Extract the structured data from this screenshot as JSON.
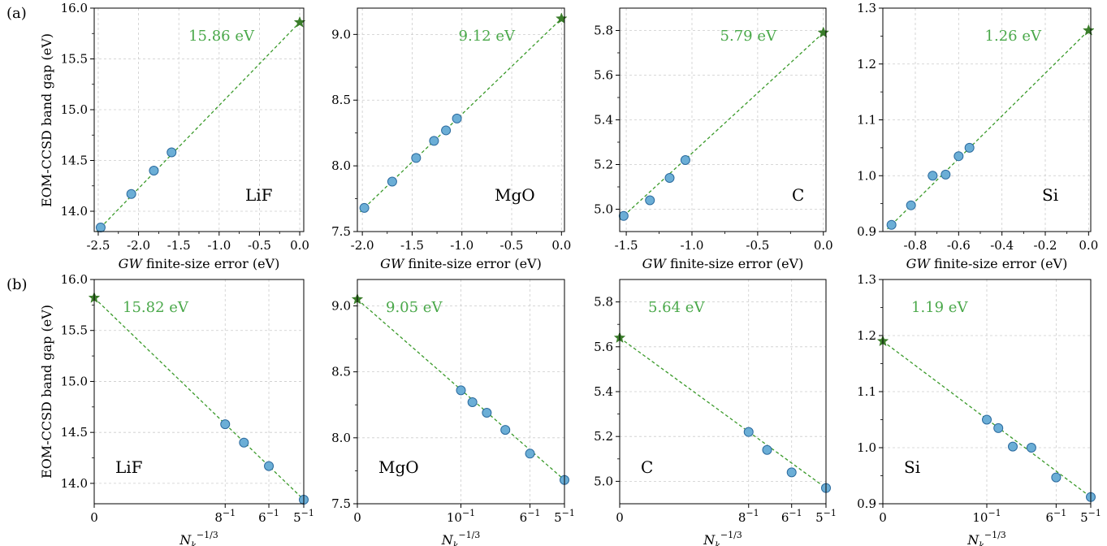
{
  "figure": {
    "row_labels": [
      "(a)",
      "(b)"
    ],
    "ylabel": "EOM-CCSD band gap (eV)",
    "xlabel_a_italic": "GW",
    "xlabel_a_rest": " finite-size error (eV)",
    "xlabel_b_base": "N",
    "xlabel_b_sub": "k",
    "xlabel_b_sup": "−1/3"
  },
  "colors": {
    "point_fill": "#6baed6",
    "point_edge": "#2b6a9e",
    "fit_line": "#3a9a2a",
    "star": "#3a7d2a",
    "annotation": "#4aa84a",
    "grid": "#cccccc"
  },
  "chart_data": [
    {
      "type": "scatter",
      "row": "a",
      "material": "LiF",
      "xlabel": "GW finite-size error (eV)",
      "ylabel": "EOM-CCSD band gap (eV)",
      "xlim": [
        -2.55,
        0.05
      ],
      "ylim": [
        13.8,
        16.0
      ],
      "xticks": [
        -2.5,
        -2.0,
        -1.5,
        -1.0,
        -0.5,
        0.0
      ],
      "xtick_labels": [
        "-2.5",
        "-2.0",
        "-1.5",
        "-1.0",
        "-0.5",
        "0.0"
      ],
      "yticks": [
        14.0,
        14.5,
        15.0,
        15.5,
        16.0
      ],
      "ytick_labels": [
        "14.0",
        "14.5",
        "15.0",
        "15.5",
        "16.0"
      ],
      "x": [
        -2.47,
        -2.09,
        -1.81,
        -1.59
      ],
      "y": [
        13.84,
        14.17,
        14.4,
        14.58
      ],
      "extrapolated": {
        "x": 0.0,
        "y": 15.86
      },
      "annotation": "15.86 eV",
      "grid": true
    },
    {
      "type": "scatter",
      "row": "a",
      "material": "MgO",
      "xlabel": "GW finite-size error (eV)",
      "ylabel": "",
      "xlim": [
        -2.05,
        0.03
      ],
      "ylim": [
        7.5,
        9.2
      ],
      "xticks": [
        -2.0,
        -1.5,
        -1.0,
        -0.5,
        0.0
      ],
      "xtick_labels": [
        "-2.0",
        "-1.5",
        "-1.0",
        "-0.5",
        "0.0"
      ],
      "yticks": [
        7.5,
        8.0,
        8.5,
        9.0
      ],
      "ytick_labels": [
        "7.5",
        "8.0",
        "8.5",
        "9.0"
      ],
      "x": [
        -1.98,
        -1.7,
        -1.46,
        -1.28,
        -1.16,
        -1.05
      ],
      "y": [
        7.68,
        7.88,
        8.06,
        8.19,
        8.27,
        8.36
      ],
      "extrapolated": {
        "x": 0.0,
        "y": 9.12
      },
      "annotation": "9.12 eV",
      "grid": true
    },
    {
      "type": "scatter",
      "row": "a",
      "material": "C",
      "xlabel": "GW finite-size error (eV)",
      "ylabel": "",
      "xlim": [
        -1.55,
        0.02
      ],
      "ylim": [
        4.9,
        5.9
      ],
      "xticks": [
        -1.5,
        -1.0,
        -0.5,
        0.0
      ],
      "xtick_labels": [
        "-1.5",
        "-1.0",
        "-0.5",
        "0.0"
      ],
      "yticks": [
        5.0,
        5.2,
        5.4,
        5.6,
        5.8
      ],
      "ytick_labels": [
        "5.0",
        "5.2",
        "5.4",
        "5.6",
        "5.8"
      ],
      "x": [
        -1.52,
        -1.32,
        -1.17,
        -1.05
      ],
      "y": [
        4.97,
        5.04,
        5.14,
        5.22
      ],
      "extrapolated": {
        "x": 0.0,
        "y": 5.79
      },
      "annotation": "5.79 eV",
      "grid": true
    },
    {
      "type": "scatter",
      "row": "a",
      "material": "Si",
      "xlabel": "GW finite-size error (eV)",
      "ylabel": "",
      "xlim": [
        -0.95,
        0.01
      ],
      "ylim": [
        0.9,
        1.3
      ],
      "xticks": [
        -0.8,
        -0.6,
        -0.4,
        -0.2,
        0.0
      ],
      "xtick_labels": [
        "-0.8",
        "-0.6",
        "-0.4",
        "-0.2",
        "0.0"
      ],
      "yticks": [
        0.9,
        1.0,
        1.1,
        1.2,
        1.3
      ],
      "ytick_labels": [
        "0.9",
        "1.0",
        "1.1",
        "1.2",
        "1.3"
      ],
      "x": [
        -0.91,
        -0.82,
        -0.72,
        -0.66,
        -0.6,
        -0.55
      ],
      "y": [
        0.912,
        0.947,
        1.0,
        1.002,
        1.035,
        1.05
      ],
      "extrapolated": {
        "x": 0.0,
        "y": 1.26
      },
      "annotation": "1.26 eV",
      "grid": true
    },
    {
      "type": "scatter",
      "row": "b",
      "material": "LiF",
      "xlabel": "N_k^{-1/3}",
      "ylabel": "EOM-CCSD band gap (eV)",
      "xlim": [
        0.0,
        0.2
      ],
      "ylim": [
        13.8,
        16.0
      ],
      "xticks": [
        0.0,
        0.125,
        0.1667,
        0.2
      ],
      "xtick_labels": [
        "0",
        "8",
        "6",
        "5"
      ],
      "xtick_sup": [
        "",
        "−1",
        "−1",
        "−1"
      ],
      "yticks": [
        14.0,
        14.5,
        15.0,
        15.5,
        16.0
      ],
      "ytick_labels": [
        "14.0",
        "14.5",
        "15.0",
        "15.5",
        "16.0"
      ],
      "x": [
        0.125,
        0.1429,
        0.1667,
        0.2
      ],
      "y": [
        14.58,
        14.4,
        14.17,
        13.84
      ],
      "extrapolated": {
        "x": 0.0,
        "y": 15.82
      },
      "annotation": "15.82 eV",
      "grid": true
    },
    {
      "type": "scatter",
      "row": "b",
      "material": "MgO",
      "xlabel": "N_k^{-1/3}",
      "ylabel": "",
      "xlim": [
        0.0,
        0.2
      ],
      "ylim": [
        7.5,
        9.2
      ],
      "xticks": [
        0.0,
        0.1,
        0.1667,
        0.2
      ],
      "xtick_labels": [
        "0",
        "10",
        "6",
        "5"
      ],
      "xtick_sup": [
        "",
        "−1",
        "−1",
        "−1"
      ],
      "yticks": [
        7.5,
        8.0,
        8.5,
        9.0
      ],
      "ytick_labels": [
        "7.5",
        "8.0",
        "8.5",
        "9.0"
      ],
      "x": [
        0.1,
        0.1111,
        0.125,
        0.1429,
        0.1667,
        0.2
      ],
      "y": [
        8.36,
        8.27,
        8.19,
        8.06,
        7.88,
        7.68
      ],
      "extrapolated": {
        "x": 0.0,
        "y": 9.05
      },
      "annotation": "9.05 eV",
      "grid": true
    },
    {
      "type": "scatter",
      "row": "b",
      "material": "C",
      "xlabel": "N_k^{-1/3}",
      "ylabel": "",
      "xlim": [
        0.0,
        0.2
      ],
      "ylim": [
        4.9,
        5.9
      ],
      "xticks": [
        0.0,
        0.125,
        0.1667,
        0.2
      ],
      "xtick_labels": [
        "0",
        "8",
        "6",
        "5"
      ],
      "xtick_sup": [
        "",
        "−1",
        "−1",
        "−1"
      ],
      "yticks": [
        5.0,
        5.2,
        5.4,
        5.6,
        5.8
      ],
      "ytick_labels": [
        "5.0",
        "5.2",
        "5.4",
        "5.6",
        "5.8"
      ],
      "x": [
        0.125,
        0.1429,
        0.1667,
        0.2
      ],
      "y": [
        5.22,
        5.14,
        5.04,
        4.97
      ],
      "extrapolated": {
        "x": 0.0,
        "y": 5.64
      },
      "annotation": "5.64 eV",
      "grid": true
    },
    {
      "type": "scatter",
      "row": "b",
      "material": "Si",
      "xlabel": "N_k^{-1/3}",
      "ylabel": "",
      "xlim": [
        0.0,
        0.2
      ],
      "ylim": [
        0.9,
        1.3
      ],
      "xticks": [
        0.0,
        0.1,
        0.1667,
        0.2
      ],
      "xtick_labels": [
        "0",
        "10",
        "6",
        "5"
      ],
      "xtick_sup": [
        "",
        "−1",
        "−1",
        "−1"
      ],
      "yticks": [
        0.9,
        1.0,
        1.1,
        1.2,
        1.3
      ],
      "ytick_labels": [
        "0.9",
        "1.0",
        "1.1",
        "1.2",
        "1.3"
      ],
      "x": [
        0.1,
        0.1111,
        0.125,
        0.1429,
        0.1667,
        0.2
      ],
      "y": [
        1.05,
        1.035,
        1.002,
        1.0,
        0.947,
        0.912
      ],
      "extrapolated": {
        "x": 0.0,
        "y": 1.19
      },
      "annotation": "1.19 eV",
      "grid": true
    }
  ]
}
